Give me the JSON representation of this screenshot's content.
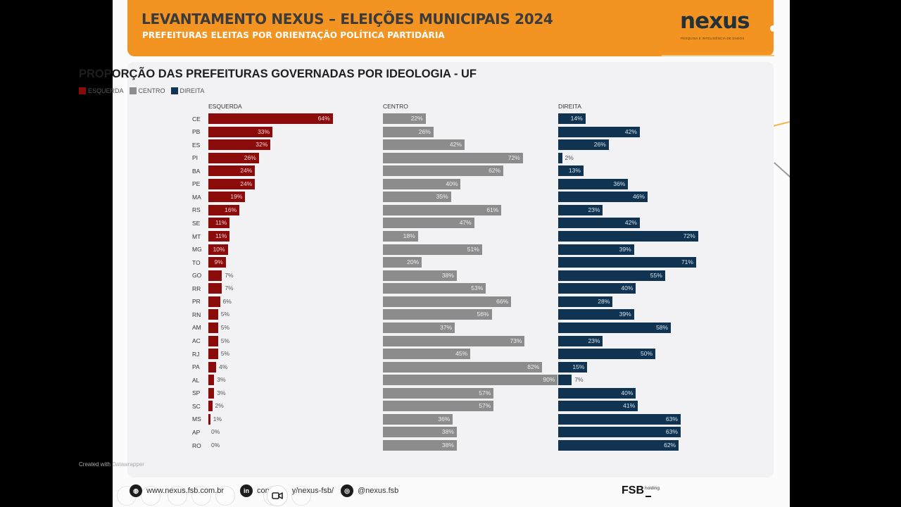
{
  "header": {
    "title": "LEVANTAMENTO NEXUS – ELEIÇÕES MUNICIPAIS 2024",
    "subtitle": "PREFEITURAS ELEITAS POR ORIENTAÇÃO POLÍTICA PARTIDÁRIA",
    "logo_text": "nexus",
    "logo_tagline": "PESQUISA E INTELIGÊNCIA DE DADOS"
  },
  "colors": {
    "header_orange": "#f39322",
    "esquerda": "#8b0a0a",
    "centro": "#8c8c8c",
    "direita": "#0f3350"
  },
  "chart_data": {
    "type": "bar",
    "orientation": "horizontal",
    "layout": "small-multiples (3 panels side by side)",
    "title": "PROPORÇÃO DAS PREFEITURAS GOVERNADAS POR IDEOLOGIA - UF",
    "legend": [
      "ESQUERDA",
      "CENTRO",
      "DIREITA"
    ],
    "legend_position": "top-left",
    "unit": "%",
    "xlim": [
      0,
      100
    ],
    "grid": false,
    "categories": [
      "CE",
      "PB",
      "ES",
      "PI",
      "BA",
      "PE",
      "MA",
      "RS",
      "SE",
      "MT",
      "MG",
      "TO",
      "GO",
      "RR",
      "PR",
      "RN",
      "AM",
      "AC",
      "RJ",
      "PA",
      "AL",
      "SP",
      "SC",
      "MS",
      "AP",
      "RO"
    ],
    "series": [
      {
        "name": "ESQUERDA",
        "values": [
          64,
          33,
          32,
          26,
          24,
          24,
          19,
          16,
          11,
          11,
          10,
          9,
          7,
          7,
          6,
          5,
          5,
          5,
          5,
          4,
          3,
          3,
          2,
          1,
          0,
          0
        ]
      },
      {
        "name": "CENTRO",
        "values": [
          22,
          26,
          42,
          72,
          62,
          40,
          35,
          61,
          47,
          18,
          51,
          20,
          38,
          53,
          66,
          56,
          37,
          73,
          45,
          82,
          90,
          57,
          57,
          36,
          38,
          38
        ]
      },
      {
        "name": "DIREITA",
        "values": [
          14,
          42,
          26,
          2,
          13,
          36,
          46,
          23,
          42,
          72,
          39,
          71,
          55,
          40,
          28,
          39,
          58,
          23,
          50,
          15,
          7,
          40,
          41,
          63,
          63,
          62
        ]
      }
    ],
    "credit": "Created with Datawrapper"
  },
  "footer": {
    "website": "www.nexus.fsb.com.br",
    "linkedin": "company/nexus-fsb/",
    "linkedin_visible": "con",
    "linkedin_visible_tail": "y/nexus-fsb/",
    "instagram": "@nexus.fsb",
    "brand": "FSB",
    "brand_sup": "holding",
    "icons": {
      "website": "globe-icon",
      "linkedin": "linkedin-icon",
      "instagram": "instagram-icon"
    }
  }
}
